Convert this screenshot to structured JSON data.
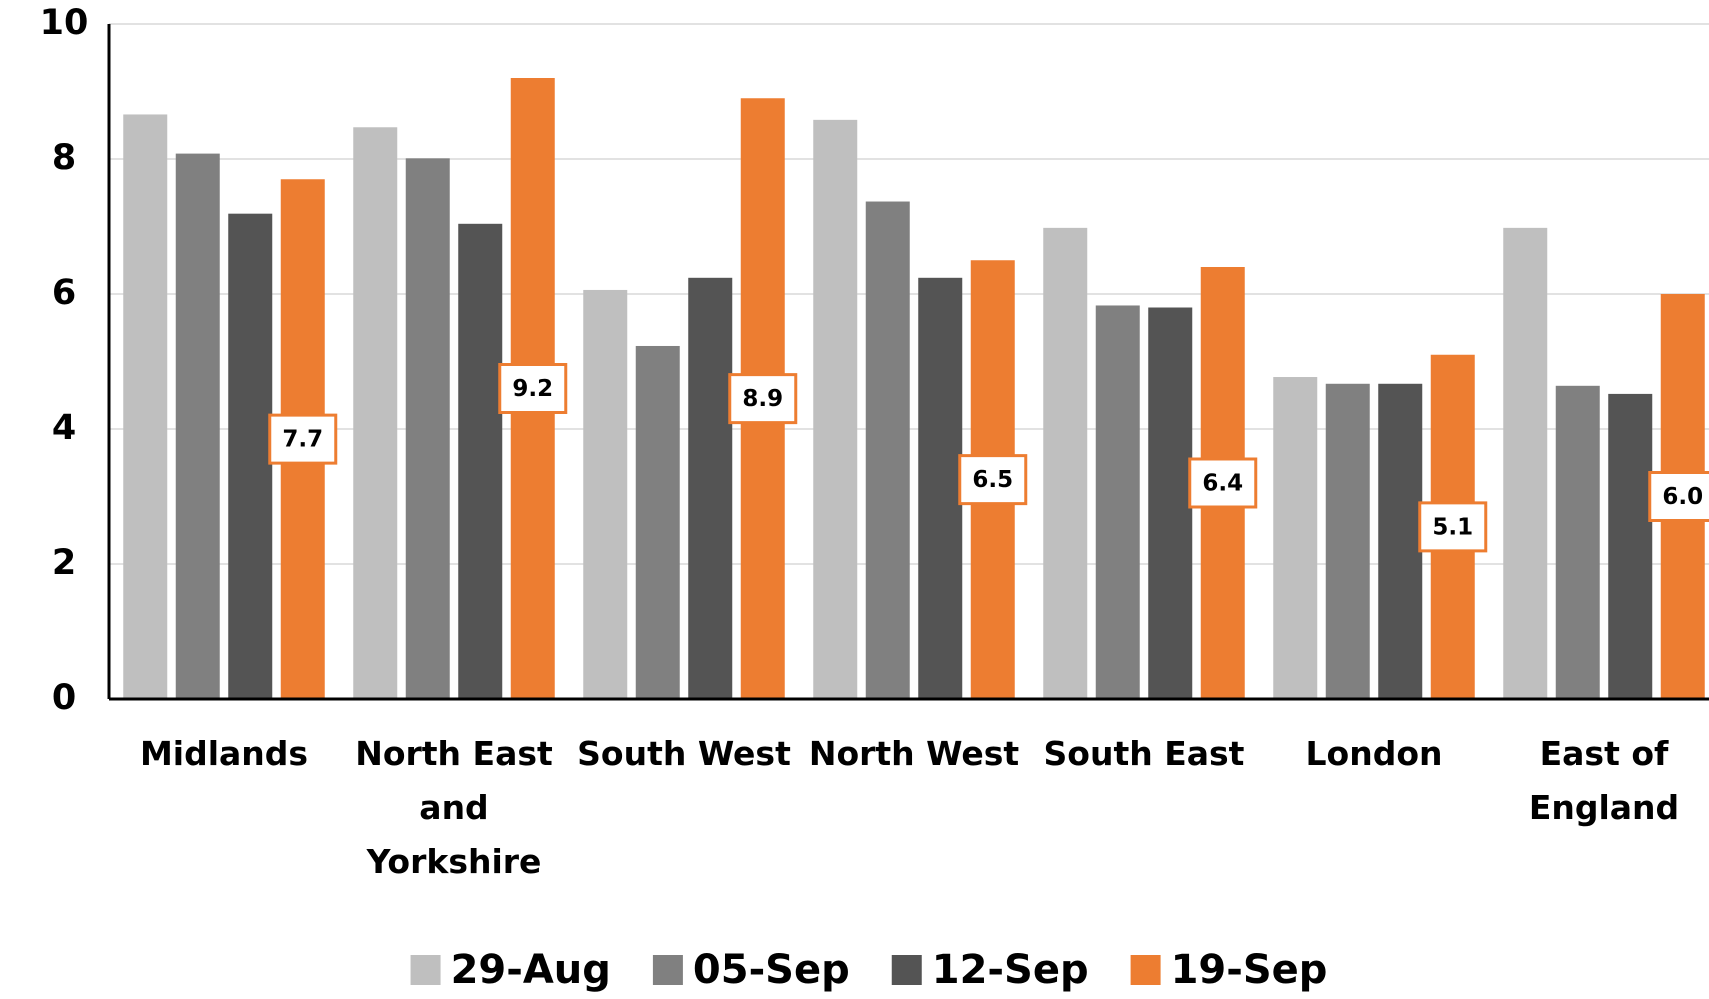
{
  "chart_data": {
    "type": "bar",
    "categories": [
      "Midlands",
      "North East and Yorkshire",
      "South West",
      "North West",
      "South East",
      "London",
      "East of England"
    ],
    "series": [
      {
        "name": "29-Aug",
        "color": "#bfbfbf",
        "values": [
          8.66,
          8.47,
          6.06,
          8.58,
          6.98,
          4.77,
          6.98
        ]
      },
      {
        "name": "05-Sep",
        "color": "#808080",
        "values": [
          8.08,
          8.01,
          5.23,
          7.37,
          5.83,
          4.67,
          4.64
        ]
      },
      {
        "name": "12-Sep",
        "color": "#545454",
        "values": [
          7.19,
          7.04,
          6.24,
          6.24,
          5.8,
          4.67,
          4.52
        ]
      },
      {
        "name": "19-Sep",
        "color": "#ed7d31",
        "values": [
          7.7,
          9.2,
          8.9,
          6.5,
          6.4,
          5.1,
          6.0
        ],
        "value_labels": [
          "7.7",
          "9.2",
          "8.9",
          "6.5",
          "6.4",
          "5.1",
          "6.0"
        ]
      }
    ],
    "ylim": [
      0,
      10
    ],
    "yticks": [
      0,
      2,
      4,
      6,
      8,
      10
    ],
    "grid": true,
    "legend": "bottom"
  }
}
